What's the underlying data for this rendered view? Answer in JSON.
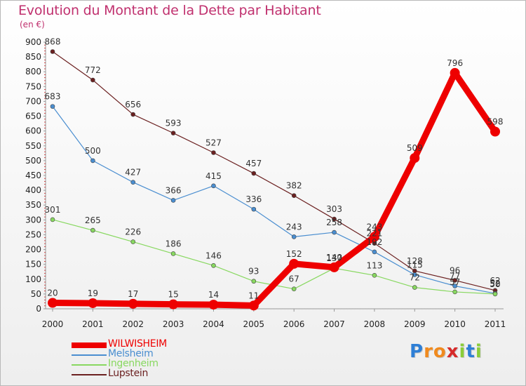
{
  "header": {
    "title": "Evolution du Montant de la Dette par Habitant",
    "subtitle": "(en €)"
  },
  "chart_data": {
    "type": "line",
    "title": "Evolution du Montant de la Dette par Habitant",
    "subtitle": "(en €)",
    "xlabel": "",
    "ylabel": "",
    "categories": [
      "2000",
      "2001",
      "2002",
      "2003",
      "2004",
      "2005",
      "2006",
      "2007",
      "2008",
      "2009",
      "2010",
      "2011"
    ],
    "ylim": [
      0,
      900
    ],
    "yticks": [
      0,
      50,
      100,
      150,
      200,
      250,
      300,
      350,
      400,
      450,
      500,
      550,
      600,
      650,
      700,
      750,
      800,
      850,
      900
    ],
    "grid": false,
    "legend_position": "bottom-left",
    "series": [
      {
        "name": "WILWISHEIM",
        "color": "#ee0000",
        "values": [
          20,
          19,
          17,
          15,
          14,
          11,
          152,
          140,
          243,
          509,
          796,
          598
        ]
      },
      {
        "name": "Melsheim",
        "color": "#4a8ed0",
        "values": [
          683,
          500,
          427,
          366,
          415,
          336,
          243,
          258,
          192,
          115,
          77,
          52
        ]
      },
      {
        "name": "Ingenheim",
        "color": "#88d860",
        "values": [
          301,
          265,
          226,
          186,
          146,
          93,
          67,
          137,
          113,
          72,
          57,
          50
        ]
      },
      {
        "name": "Lupstein",
        "color": "#6b2020",
        "values": [
          868,
          772,
          656,
          593,
          527,
          457,
          382,
          303,
          221,
          128,
          96,
          62
        ]
      }
    ],
    "data_labels": [
      [
        "20",
        "19",
        "17",
        "15",
        "14",
        "11",
        "152",
        "140",
        "243",
        "509",
        "796",
        "598"
      ],
      [
        "683",
        "500",
        "427",
        "366",
        "415",
        "336",
        "243",
        "258",
        "192",
        "115",
        "77",
        "52"
      ],
      [
        "301",
        "265",
        "226",
        "186",
        "146",
        "93",
        "67",
        "137",
        "113",
        "72",
        "57",
        "50"
      ],
      [
        "868",
        "772",
        "656",
        "593",
        "527",
        "457",
        "382",
        "303",
        "221",
        "128",
        "96",
        "62"
      ]
    ]
  },
  "logo": {
    "letters": [
      "P",
      "r",
      "o",
      "x",
      "i",
      "t",
      "i"
    ],
    "colors": [
      "#2e7fd6",
      "#f08a1e",
      "#f08a1e",
      "#d62a2a",
      "#8acd3a",
      "#2e7fd6",
      "#8acd3a"
    ]
  }
}
